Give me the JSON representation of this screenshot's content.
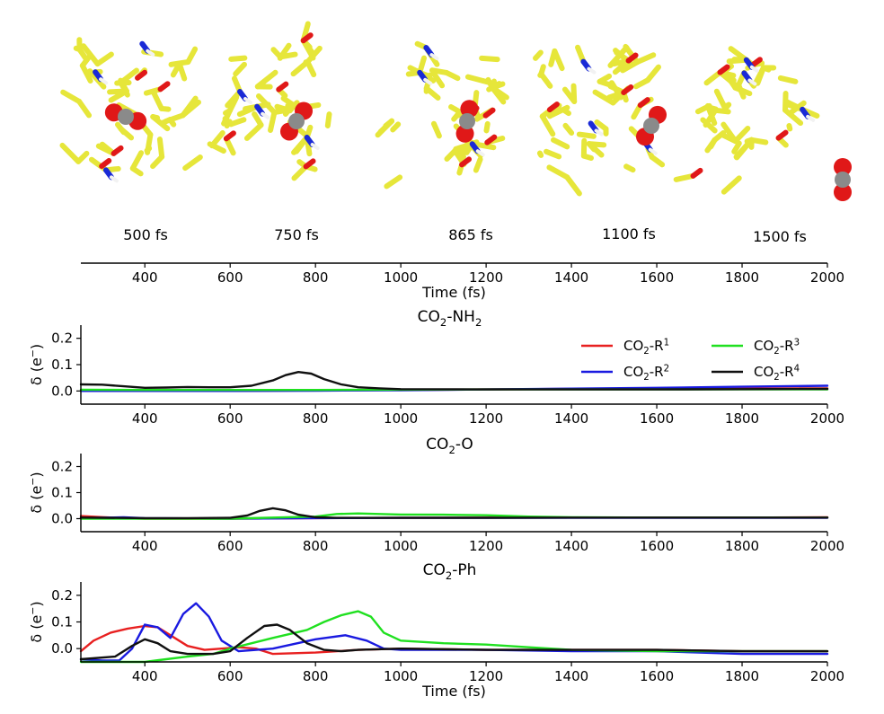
{
  "snapshots": [
    {
      "label": "500 fs",
      "time": 500
    },
    {
      "label": "750 fs",
      "time": 750
    },
    {
      "label": "865 fs",
      "time": 865
    },
    {
      "label": "1100 fs",
      "time": 1100
    },
    {
      "label": "1500 fs",
      "time": 1500
    }
  ],
  "colors": {
    "ligand": "#e6e63a",
    "ligand_stroke": "#c8c814",
    "oxygen": "#e01818",
    "nitrogen": "#1a2ad6",
    "carbon": "#8a8a8a",
    "hydrogen": "#f2f2f2",
    "hbond": "#c040c0"
  },
  "chart_data": [
    {
      "type": "line",
      "title": "",
      "xlabel": "Time (fs)",
      "ylabel": "",
      "xlim": [
        250,
        2000
      ],
      "xticks": [
        400,
        600,
        800,
        1000,
        1200,
        1400,
        1600,
        1800,
        2000
      ],
      "tick_labels": [
        "400",
        "600",
        "800",
        "1000",
        "1200",
        "1400",
        "1600",
        "1800",
        "2000"
      ],
      "series": []
    },
    {
      "type": "line",
      "title": "CO₂-NH₂",
      "xlabel": "",
      "ylabel": "δ (e⁻)",
      "xlim": [
        250,
        2000
      ],
      "ylim": [
        -0.05,
        0.25
      ],
      "xticks": [
        400,
        600,
        800,
        1000,
        1200,
        1400,
        1600,
        1800,
        2000
      ],
      "xtick_labels": [
        "400",
        "600",
        "800",
        "1000",
        "1200",
        "1400",
        "1600",
        "1800",
        "2000"
      ],
      "yticks": [
        0.0,
        0.1,
        0.2
      ],
      "ytick_labels": [
        "0.0",
        "0.1",
        "0.2"
      ],
      "legend_position": "top-right",
      "series": [
        {
          "name": "CO₂-R¹",
          "color": "#e82020",
          "x": [
            250,
            400,
            600,
            800,
            1000,
            1200,
            1400,
            1600,
            1800,
            2000
          ],
          "y": [
            0.0,
            0.0,
            0.0,
            0.002,
            0.004,
            0.006,
            0.008,
            0.008,
            0.009,
            0.01
          ]
        },
        {
          "name": "CO₂-R²",
          "color": "#1a1ae0",
          "x": [
            250,
            400,
            600,
            800,
            1000,
            1200,
            1400,
            1600,
            1800,
            2000
          ],
          "y": [
            0.0,
            0.0,
            0.0,
            0.001,
            0.003,
            0.006,
            0.009,
            0.012,
            0.016,
            0.02
          ]
        },
        {
          "name": "CO₂-R³",
          "color": "#20e020",
          "x": [
            250,
            400,
            600,
            800,
            1000,
            1200,
            1400,
            1600,
            1800,
            2000
          ],
          "y": [
            0.005,
            0.004,
            0.004,
            0.004,
            0.005,
            0.006,
            0.006,
            0.006,
            0.006,
            0.006
          ]
        },
        {
          "name": "CO₂-R⁴",
          "color": "#101010",
          "x": [
            250,
            300,
            350,
            400,
            450,
            500,
            550,
            600,
            650,
            700,
            730,
            760,
            790,
            820,
            860,
            900,
            950,
            1000,
            1200,
            1400,
            1600,
            1800,
            2000
          ],
          "y": [
            0.025,
            0.024,
            0.018,
            0.012,
            0.013,
            0.015,
            0.014,
            0.014,
            0.02,
            0.04,
            0.06,
            0.072,
            0.066,
            0.045,
            0.025,
            0.014,
            0.01,
            0.007,
            0.006,
            0.006,
            0.006,
            0.007,
            0.008
          ]
        }
      ]
    },
    {
      "type": "line",
      "title": "CO₂-O",
      "xlabel": "",
      "ylabel": "δ (e⁻)",
      "xlim": [
        250,
        2000
      ],
      "ylim": [
        -0.05,
        0.25
      ],
      "xticks": [
        400,
        600,
        800,
        1000,
        1200,
        1400,
        1600,
        1800,
        2000
      ],
      "xtick_labels": [
        "400",
        "600",
        "800",
        "1000",
        "1200",
        "1400",
        "1600",
        "1800",
        "2000"
      ],
      "yticks": [
        0.0,
        0.1,
        0.2
      ],
      "ytick_labels": [
        "0.0",
        "0.1",
        "0.2"
      ],
      "series": [
        {
          "name": "CO₂-R¹",
          "color": "#e82020",
          "x": [
            250,
            300,
            350,
            400,
            600,
            800,
            1000,
            1200,
            1400,
            1600,
            1800,
            2000
          ],
          "y": [
            0.01,
            0.006,
            0.002,
            0.0,
            0.0,
            0.002,
            0.003,
            0.004,
            0.004,
            0.004,
            0.004,
            0.005
          ]
        },
        {
          "name": "CO₂-R²",
          "color": "#1a1ae0",
          "x": [
            250,
            350,
            400,
            600,
            800,
            1000,
            1200,
            1400,
            1600,
            1800,
            2000
          ],
          "y": [
            0.002,
            0.005,
            0.002,
            0.0,
            0.002,
            0.003,
            0.003,
            0.003,
            0.003,
            0.003,
            0.003
          ]
        },
        {
          "name": "CO₂-R³",
          "color": "#20e020",
          "x": [
            250,
            400,
            600,
            800,
            850,
            900,
            1000,
            1100,
            1200,
            1300,
            1400,
            1600,
            1800,
            2000
          ],
          "y": [
            0.0,
            0.0,
            0.0,
            0.008,
            0.018,
            0.02,
            0.016,
            0.015,
            0.013,
            0.008,
            0.005,
            0.004,
            0.004,
            0.004
          ]
        },
        {
          "name": "CO₂-R⁴",
          "color": "#101010",
          "x": [
            250,
            400,
            500,
            600,
            640,
            670,
            700,
            730,
            760,
            800,
            850,
            1000,
            1200,
            1400,
            1600,
            1800,
            2000
          ],
          "y": [
            0.004,
            0.002,
            0.002,
            0.003,
            0.012,
            0.03,
            0.04,
            0.032,
            0.015,
            0.005,
            0.003,
            0.003,
            0.003,
            0.004,
            0.004,
            0.004,
            0.004
          ]
        }
      ]
    },
    {
      "type": "line",
      "title": "CO₂-Ph",
      "xlabel": "Time (fs)",
      "ylabel": "δ (e⁻)",
      "xlim": [
        250,
        2000
      ],
      "ylim": [
        -0.05,
        0.25
      ],
      "xticks": [
        400,
        600,
        800,
        1000,
        1200,
        1400,
        1600,
        1800,
        2000
      ],
      "xtick_labels": [
        "400",
        "600",
        "800",
        "1000",
        "1200",
        "1400",
        "1600",
        "1800",
        "2000"
      ],
      "yticks": [
        0.0,
        0.1,
        0.2
      ],
      "ytick_labels": [
        "0.0",
        "0.1",
        "0.2"
      ],
      "series": [
        {
          "name": "CO₂-R¹",
          "color": "#e82020",
          "x": [
            250,
            280,
            320,
            360,
            400,
            430,
            460,
            500,
            540,
            580,
            620,
            660,
            700,
            800,
            900,
            1000,
            1200,
            1400,
            1600,
            1800,
            2000
          ],
          "y": [
            -0.01,
            0.03,
            0.06,
            0.075,
            0.085,
            0.08,
            0.05,
            0.01,
            -0.005,
            0.0,
            0.005,
            0.0,
            -0.02,
            -0.015,
            -0.005,
            0.0,
            -0.005,
            -0.005,
            -0.005,
            -0.01,
            -0.01
          ]
        },
        {
          "name": "CO₂-R²",
          "color": "#1a1ae0",
          "x": [
            250,
            300,
            340,
            370,
            400,
            430,
            460,
            490,
            520,
            550,
            580,
            620,
            700,
            800,
            870,
            920,
            960,
            1000,
            1200,
            1400,
            1600,
            1800,
            2000
          ],
          "y": [
            -0.04,
            -0.045,
            -0.045,
            0.0,
            0.09,
            0.08,
            0.04,
            0.13,
            0.17,
            0.12,
            0.03,
            -0.01,
            0.0,
            0.035,
            0.05,
            0.03,
            0.0,
            -0.005,
            -0.005,
            -0.01,
            -0.01,
            -0.02,
            -0.02
          ]
        },
        {
          "name": "CO₂-R³",
          "color": "#20e020",
          "x": [
            250,
            350,
            400,
            450,
            500,
            560,
            600,
            700,
            780,
            820,
            860,
            900,
            930,
            960,
            1000,
            1100,
            1200,
            1300,
            1400,
            1600,
            1800,
            2000
          ],
          "y": [
            -0.05,
            -0.05,
            -0.05,
            -0.04,
            -0.03,
            -0.02,
            0.0,
            0.04,
            0.07,
            0.1,
            0.125,
            0.14,
            0.12,
            0.06,
            0.03,
            0.02,
            0.015,
            0.005,
            -0.005,
            -0.01,
            -0.01,
            -0.01
          ]
        },
        {
          "name": "CO₂-R⁴",
          "color": "#101010",
          "x": [
            250,
            330,
            370,
            400,
            430,
            460,
            500,
            560,
            600,
            640,
            680,
            710,
            740,
            780,
            820,
            860,
            900,
            1000,
            1200,
            1400,
            1600,
            1800,
            2000
          ],
          "y": [
            -0.04,
            -0.03,
            0.01,
            0.035,
            0.02,
            -0.01,
            -0.02,
            -0.02,
            -0.01,
            0.04,
            0.085,
            0.09,
            0.07,
            0.02,
            -0.005,
            -0.01,
            -0.005,
            0.0,
            -0.005,
            -0.005,
            -0.005,
            -0.01,
            -0.01
          ]
        }
      ]
    }
  ]
}
